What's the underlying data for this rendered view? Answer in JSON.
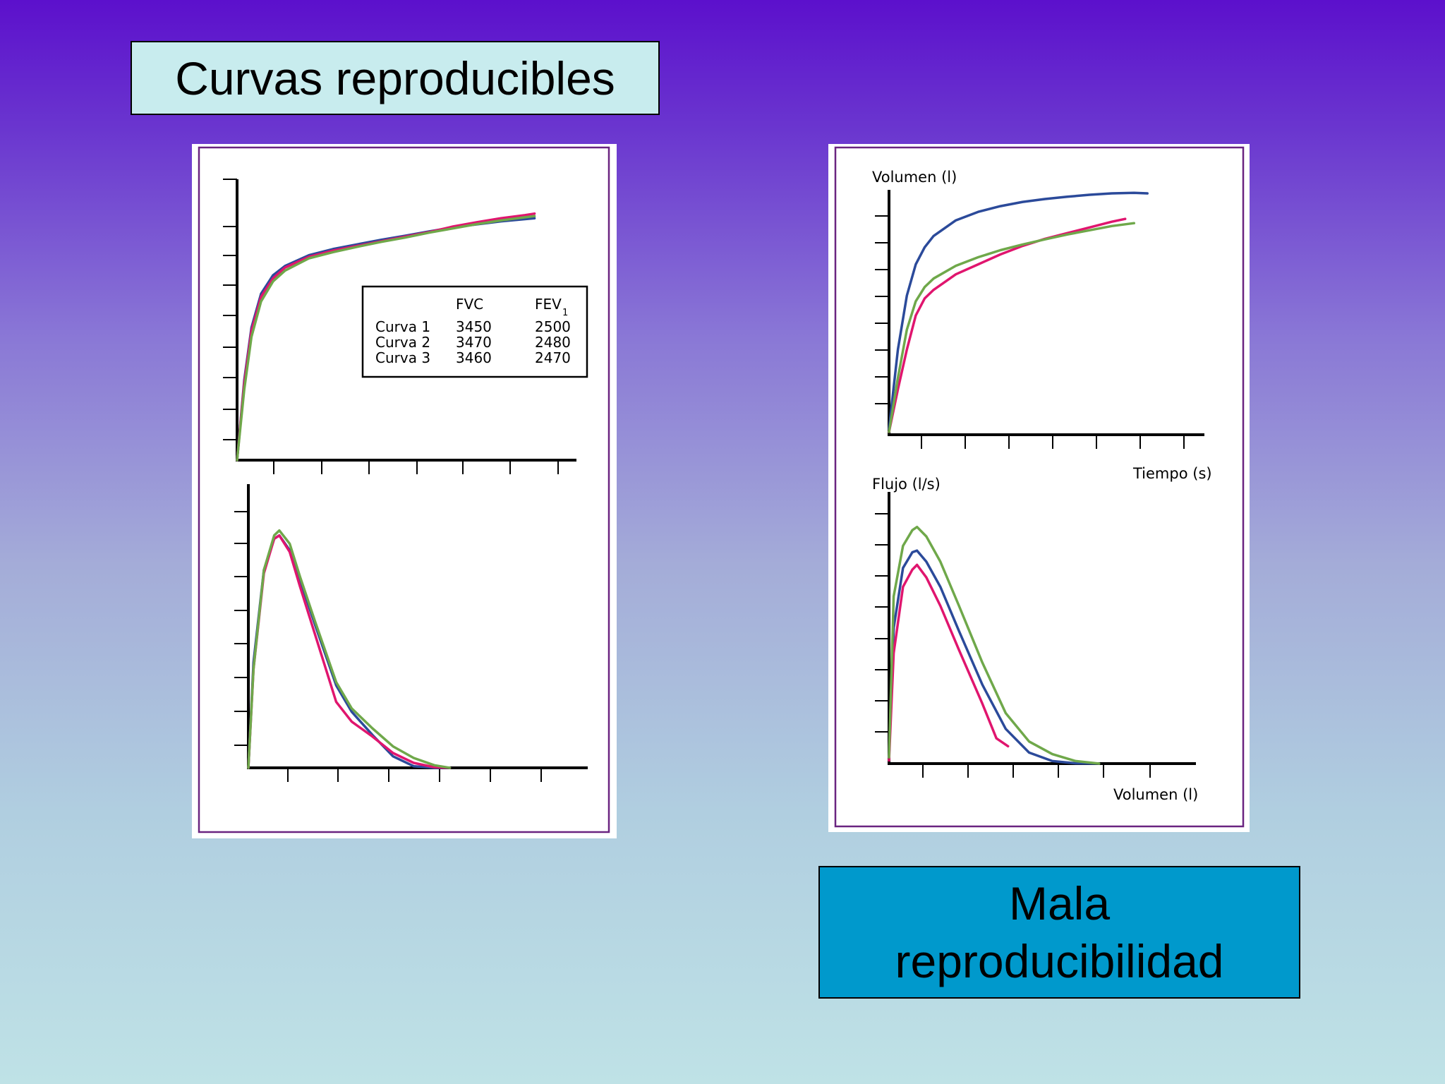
{
  "slide": {
    "title": "Curvas reproducibles",
    "caption_line1": "Mala",
    "caption_line2": "reproducibilidad"
  },
  "colors": {
    "curve1": "#2b4a9a",
    "curve2": "#e0156e",
    "curve3": "#6fa84a",
    "frame": "#6a2480"
  },
  "chart_data": [
    {
      "type": "line",
      "panel": "left-top",
      "title": "",
      "xlabel": "",
      "ylabel": "",
      "xlim": [
        0,
        7
      ],
      "ylim": [
        0,
        9
      ],
      "series": [
        {
          "x": [
            0,
            0.15,
            0.3,
            0.5,
            0.75,
            1,
            1.5,
            2,
            2.5,
            3,
            3.5,
            4,
            4.5,
            5,
            5.5,
            6,
            6.2
          ],
          "values": [
            0,
            2.6,
            4.3,
            5.4,
            6.0,
            6.3,
            6.65,
            6.85,
            7.0,
            7.15,
            7.28,
            7.42,
            7.55,
            7.65,
            7.75,
            7.82,
            7.85
          ]
        },
        {
          "x": [
            0,
            0.15,
            0.3,
            0.5,
            0.75,
            1,
            1.5,
            2,
            2.5,
            3,
            3.5,
            4,
            4.5,
            5,
            5.5,
            6,
            6.2
          ],
          "values": [
            0,
            2.5,
            4.2,
            5.3,
            5.9,
            6.25,
            6.6,
            6.8,
            6.95,
            7.1,
            7.25,
            7.4,
            7.58,
            7.72,
            7.85,
            7.95,
            8.0
          ]
        },
        {
          "x": [
            0,
            0.15,
            0.3,
            0.5,
            0.75,
            1,
            1.5,
            2,
            2.5,
            3,
            3.5,
            4,
            4.5,
            5,
            5.5,
            6,
            6.2
          ],
          "values": [
            0,
            2.3,
            4.0,
            5.15,
            5.8,
            6.15,
            6.55,
            6.75,
            6.92,
            7.08,
            7.22,
            7.38,
            7.52,
            7.66,
            7.78,
            7.88,
            7.92
          ]
        }
      ],
      "legend_table": {
        "columns": [
          "",
          "FVC",
          "FEV",
          "1"
        ],
        "rows": [
          [
            "Curva 1",
            "3450",
            "2500"
          ],
          [
            "Curva 2",
            "3470",
            "2480"
          ],
          [
            "Curva 3",
            "3460",
            "2470"
          ]
        ]
      }
    },
    {
      "type": "line",
      "panel": "left-bottom",
      "title": "",
      "xlabel": "",
      "ylabel": "",
      "xlim": [
        0,
        6.5
      ],
      "ylim": [
        0,
        8.5
      ],
      "series": [
        {
          "x": [
            0,
            0.1,
            0.3,
            0.5,
            0.6,
            0.8,
            1.0,
            1.3,
            1.7,
            2.0,
            2.4,
            2.8,
            3.2,
            3.6,
            3.9
          ],
          "values": [
            0,
            3.2,
            6.0,
            6.95,
            7.05,
            6.6,
            5.7,
            4.3,
            2.5,
            1.7,
            1.0,
            0.35,
            0.05,
            0.0,
            0.0
          ]
        },
        {
          "x": [
            0,
            0.1,
            0.3,
            0.5,
            0.6,
            0.8,
            1.0,
            1.3,
            1.7,
            2.0,
            2.4,
            2.8,
            3.2,
            3.6,
            3.9
          ],
          "values": [
            0,
            3.0,
            5.9,
            6.95,
            7.05,
            6.55,
            5.5,
            4.0,
            2.0,
            1.4,
            0.95,
            0.45,
            0.15,
            0.02,
            0.0
          ]
        },
        {
          "x": [
            0,
            0.1,
            0.3,
            0.5,
            0.6,
            0.8,
            1.0,
            1.3,
            1.7,
            2.0,
            2.4,
            2.8,
            3.2,
            3.6,
            3.9
          ],
          "values": [
            0,
            3.0,
            6.0,
            7.05,
            7.2,
            6.8,
            5.8,
            4.4,
            2.6,
            1.8,
            1.2,
            0.65,
            0.3,
            0.08,
            0.0
          ]
        }
      ]
    },
    {
      "type": "line",
      "panel": "right-top",
      "title": "",
      "xlabel": "Tiempo (s)",
      "ylabel": "Volumen (l)",
      "xlim": [
        0,
        7
      ],
      "ylim": [
        0,
        8.5
      ],
      "series": [
        {
          "x": [
            0,
            0.2,
            0.4,
            0.6,
            0.8,
            1.0,
            1.5,
            2.0,
            2.5,
            3.0,
            3.5,
            4.0,
            4.5,
            5.0,
            5.5,
            5.8
          ],
          "values": [
            0.2,
            3.0,
            4.9,
            6.0,
            6.6,
            7.0,
            7.55,
            7.85,
            8.05,
            8.2,
            8.3,
            8.38,
            8.45,
            8.5,
            8.52,
            8.5
          ]
        },
        {
          "x": [
            0,
            0.2,
            0.4,
            0.6,
            0.8,
            1.0,
            1.5,
            2.0,
            2.5,
            3.0,
            3.5,
            4.0,
            4.5,
            5.0,
            5.3
          ],
          "values": [
            0.1,
            1.6,
            3.0,
            4.2,
            4.8,
            5.1,
            5.65,
            6.0,
            6.35,
            6.65,
            6.9,
            7.1,
            7.3,
            7.5,
            7.6
          ]
        },
        {
          "x": [
            0,
            0.2,
            0.4,
            0.6,
            0.8,
            1.0,
            1.5,
            2.0,
            2.5,
            3.0,
            3.5,
            4.0,
            4.5,
            5.0,
            5.5
          ],
          "values": [
            0.1,
            2.0,
            3.7,
            4.7,
            5.2,
            5.5,
            5.95,
            6.25,
            6.5,
            6.7,
            6.88,
            7.05,
            7.2,
            7.35,
            7.45
          ]
        }
      ]
    },
    {
      "type": "line",
      "panel": "right-bottom",
      "title": "",
      "xlabel": "Volumen (l)",
      "ylabel": "Flujo (l/s)",
      "xlim": [
        0,
        6.5
      ],
      "ylim": [
        0,
        8.5
      ],
      "series": [
        {
          "x": [
            0,
            0.1,
            0.3,
            0.5,
            0.6,
            0.8,
            1.1,
            1.5,
            2.0,
            2.5,
            3.0,
            3.5,
            4.0,
            4.5
          ],
          "values": [
            0.2,
            4.3,
            6.2,
            6.7,
            6.75,
            6.4,
            5.6,
            4.2,
            2.5,
            1.1,
            0.35,
            0.08,
            0.01,
            0.0
          ]
        },
        {
          "x": [
            0,
            0.1,
            0.3,
            0.5,
            0.6,
            0.8,
            1.1,
            1.5,
            2.0,
            2.3,
            2.4,
            2.55
          ],
          "values": [
            0.1,
            3.5,
            5.6,
            6.15,
            6.3,
            5.9,
            5.0,
            3.6,
            1.9,
            0.8,
            0.7,
            0.55
          ]
        },
        {
          "x": [
            0,
            0.1,
            0.3,
            0.5,
            0.6,
            0.8,
            1.1,
            1.5,
            2.0,
            2.5,
            3.0,
            3.5,
            4.0,
            4.5
          ],
          "values": [
            0.2,
            5.3,
            6.9,
            7.4,
            7.5,
            7.2,
            6.4,
            5.0,
            3.2,
            1.6,
            0.7,
            0.3,
            0.08,
            0.0
          ]
        }
      ]
    }
  ]
}
